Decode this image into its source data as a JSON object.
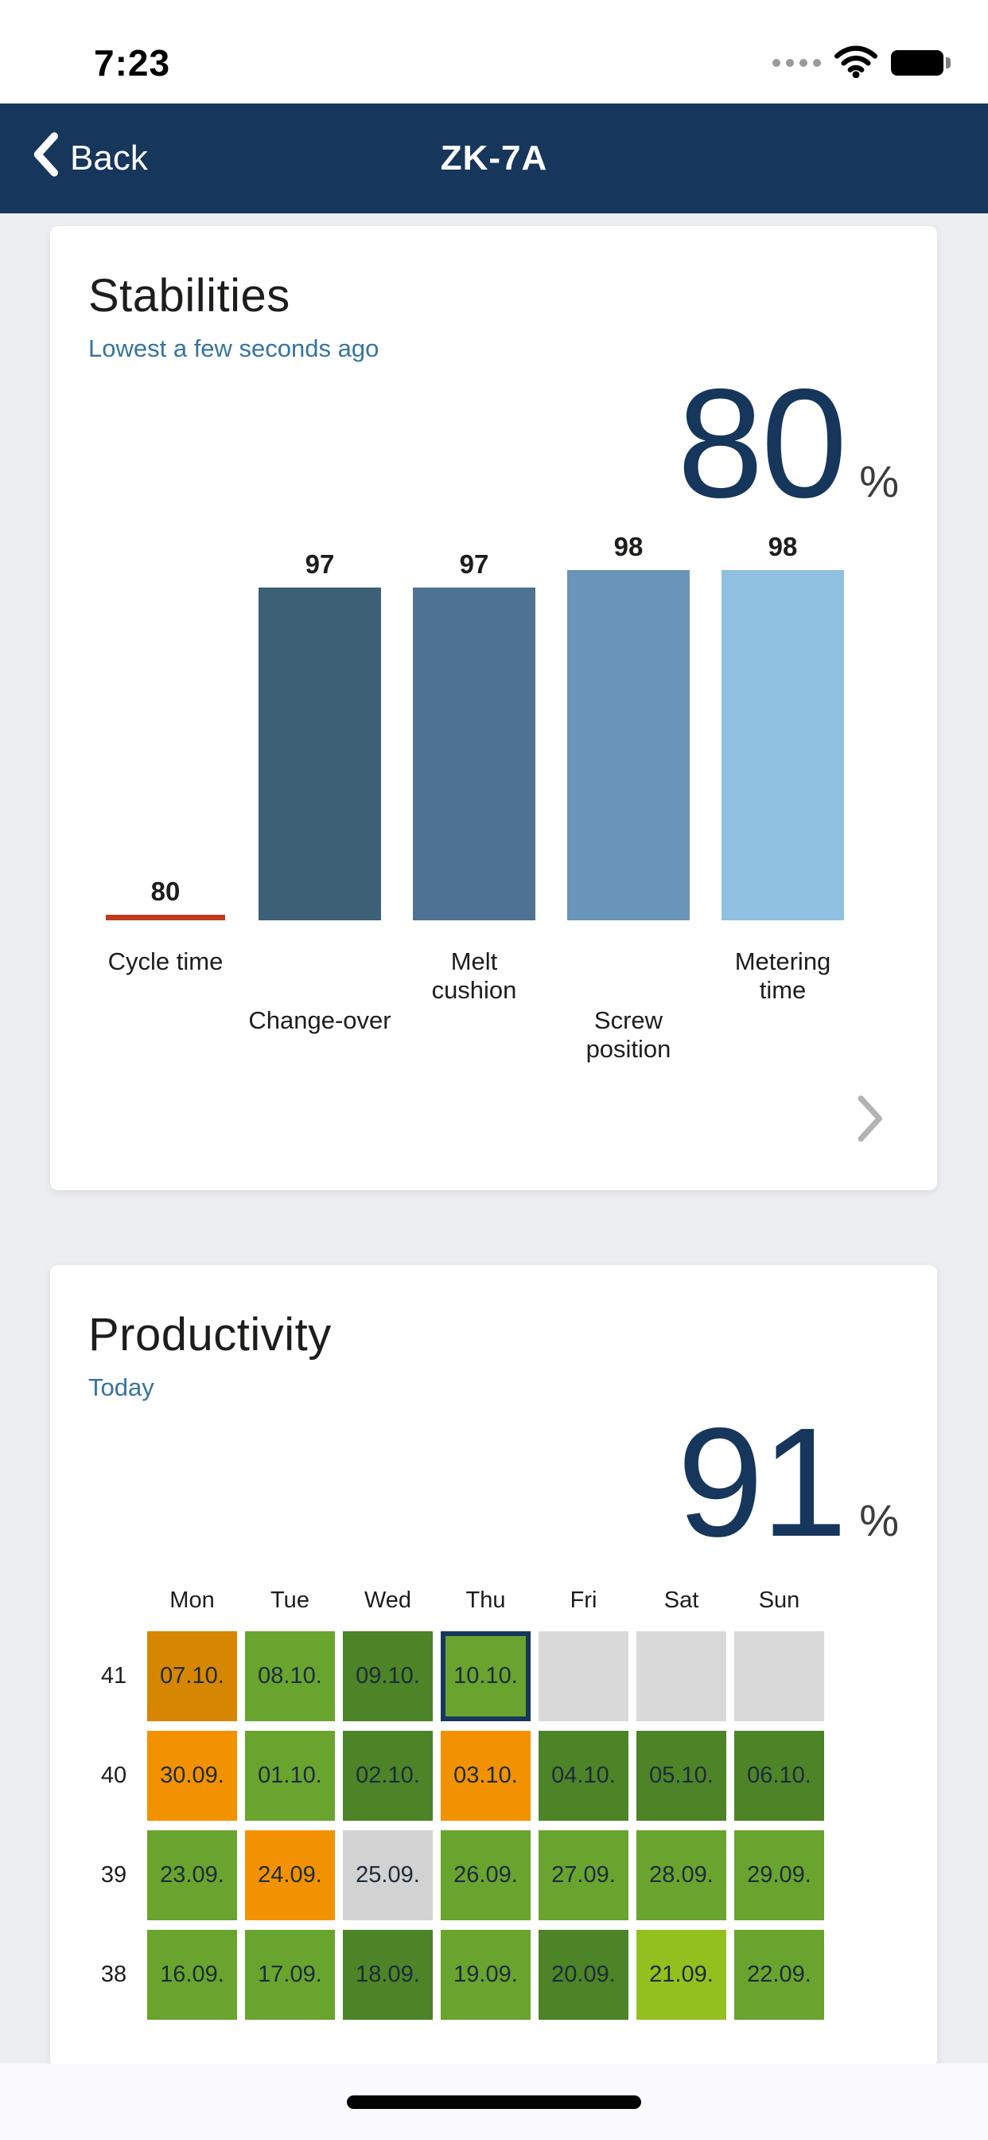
{
  "status_bar": {
    "time": "7:23"
  },
  "nav": {
    "back_label": "Back",
    "title": "ZK-7A"
  },
  "stabilities_card": {
    "title": "Stabilities",
    "subtitle": "Lowest a few seconds ago",
    "value": "80",
    "unit": "%",
    "chart_data": {
      "type": "bar",
      "title": "Stabilities",
      "categories": [
        "Cycle time",
        "Change-over",
        "Melt cushion",
        "Screw position",
        "Metering time"
      ],
      "label_lines": [
        [
          "Cycle time"
        ],
        [
          "Change-over"
        ],
        [
          "Melt",
          "cushion"
        ],
        [
          "Screw",
          "position"
        ],
        [
          "Metering",
          "time"
        ]
      ],
      "values": [
        80,
        97,
        97,
        98,
        98
      ],
      "ylim": [
        78,
        100
      ],
      "bar_colors": [
        "#c0391b",
        "#3c6076",
        "#4e7392",
        "#6a95b8",
        "#8fc0e0"
      ],
      "low_bar_index": 0,
      "value_labels_shown": true,
      "grid": false
    }
  },
  "productivity_card": {
    "title": "Productivity",
    "subtitle": "Today",
    "value": "91",
    "unit": "%",
    "chart_data": {
      "type": "heatmap",
      "title": "Productivity",
      "day_headers": [
        "Mon",
        "Tue",
        "Wed",
        "Thu",
        "Fri",
        "Sat",
        "Sun"
      ],
      "colors": {
        "orange": "#f39200",
        "orange_dark": "#d68600",
        "green": "#69a42e",
        "green_dark": "#4c8427",
        "green_light": "#93c01f",
        "gray": "#d2d2d2",
        "empty": "#d9d9d9"
      },
      "weeks": [
        {
          "week": "41",
          "days": [
            {
              "label": "07.10.",
              "color": "orange_dark"
            },
            {
              "label": "08.10.",
              "color": "green"
            },
            {
              "label": "09.10.",
              "color": "green_dark"
            },
            {
              "label": "10.10.",
              "color": "green",
              "selected": true
            },
            {
              "label": "",
              "color": "empty"
            },
            {
              "label": "",
              "color": "empty"
            },
            {
              "label": "",
              "color": "empty"
            }
          ]
        },
        {
          "week": "40",
          "days": [
            {
              "label": "30.09.",
              "color": "orange"
            },
            {
              "label": "01.10.",
              "color": "green"
            },
            {
              "label": "02.10.",
              "color": "green_dark"
            },
            {
              "label": "03.10.",
              "color": "orange"
            },
            {
              "label": "04.10.",
              "color": "green_dark"
            },
            {
              "label": "05.10.",
              "color": "green_dark"
            },
            {
              "label": "06.10.",
              "color": "green_dark"
            }
          ]
        },
        {
          "week": "39",
          "days": [
            {
              "label": "23.09.",
              "color": "green"
            },
            {
              "label": "24.09.",
              "color": "orange"
            },
            {
              "label": "25.09.",
              "color": "gray"
            },
            {
              "label": "26.09.",
              "color": "green"
            },
            {
              "label": "27.09.",
              "color": "green"
            },
            {
              "label": "28.09.",
              "color": "green"
            },
            {
              "label": "29.09.",
              "color": "green"
            }
          ]
        },
        {
          "week": "38",
          "days": [
            {
              "label": "16.09.",
              "color": "green"
            },
            {
              "label": "17.09.",
              "color": "green"
            },
            {
              "label": "18.09.",
              "color": "green_dark"
            },
            {
              "label": "19.09.",
              "color": "green"
            },
            {
              "label": "20.09.",
              "color": "green_dark"
            },
            {
              "label": "21.09.",
              "color": "green_light"
            },
            {
              "label": "22.09.",
              "color": "green"
            }
          ]
        }
      ]
    }
  }
}
